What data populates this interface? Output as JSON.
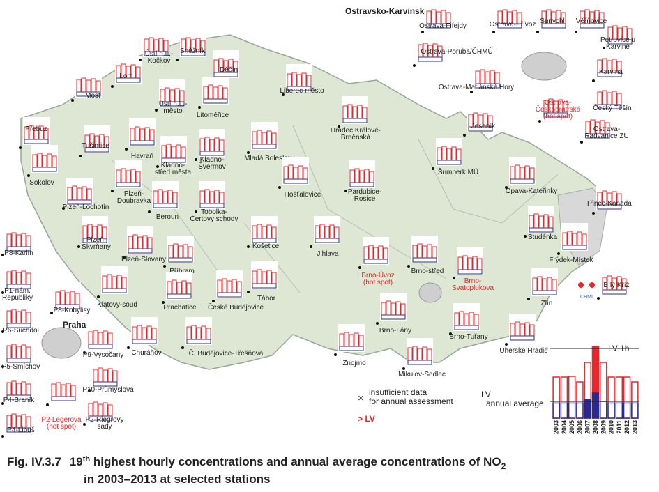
{
  "region_label": "Ostravsko-Karvinsko",
  "city_label": "Praha",
  "stations": [
    {
      "label": [
        "Přebuz"
      ]
    },
    {
      "label": [
        "Tušimice"
      ]
    },
    {
      "label": [
        "Sokolov"
      ]
    },
    {
      "label": [
        "Most"
      ]
    },
    {
      "label": [
        "Lom"
      ]
    },
    {
      "label": [
        "Ústí n.L.-",
        "Kočkov"
      ]
    },
    {
      "label": [
        "Sněžník"
      ]
    },
    {
      "label": [
        "Děčín"
      ]
    },
    {
      "label": [
        "Ústí n.L.-",
        "město"
      ]
    },
    {
      "label": [
        "Litoměřice"
      ]
    },
    {
      "label": [
        "Liberec-město"
      ]
    },
    {
      "label": [
        "Havraň"
      ]
    },
    {
      "label": [
        "Kladno-",
        "střed města"
      ]
    },
    {
      "label": [
        "Kladno-",
        "Švermov"
      ]
    },
    {
      "label": [
        "Mladá Boleslav"
      ]
    },
    {
      "label": [
        "Hradec Králové-",
        "Brněnská"
      ]
    },
    {
      "label": [
        "Plzeň-Lochotín"
      ]
    },
    {
      "label": [
        "Plzeň-",
        "Doubravka"
      ]
    },
    {
      "label": [
        "Beroun"
      ]
    },
    {
      "label": [
        "Tobolka-",
        "Čertovy schody"
      ]
    },
    {
      "label": [
        "Hošťalovice"
      ]
    },
    {
      "label": [
        "Pardubice-",
        "Rosice"
      ]
    },
    {
      "label": [
        "Plzeň-",
        "Skvrňany"
      ]
    },
    {
      "label": [
        "Plzeň-Slovany"
      ]
    },
    {
      "label": [
        "Košetice"
      ]
    },
    {
      "label": [
        "Jihlava"
      ]
    },
    {
      "label": [
        "Příbram"
      ]
    },
    {
      "label": [
        "Klatovy-soud"
      ]
    },
    {
      "label": [
        "Prachatice"
      ]
    },
    {
      "label": [
        "České Budějovice"
      ]
    },
    {
      "label": [
        "Tábor"
      ]
    },
    {
      "label": [
        "Churáňov"
      ]
    },
    {
      "label": [
        "Č. Budějovice-Třešňová"
      ]
    },
    {
      "label": [
        "Znojmo"
      ]
    },
    {
      "label": [
        "Mikulov-Sedlec"
      ]
    },
    {
      "label": [
        "Brno-Lány"
      ]
    },
    {
      "label": [
        "Brno-Tuřany"
      ]
    },
    {
      "label": [
        "Brno-Úvoz",
        "(hot spot)"
      ],
      "color": "#e8262b"
    },
    {
      "label": [
        "Brno-střed"
      ]
    },
    {
      "label": [
        "Brno-",
        "Svatoplukova"
      ],
      "color": "#e8262b"
    },
    {
      "label": [
        "Šumperk MÚ"
      ]
    },
    {
      "label": [
        "Jeseník"
      ]
    },
    {
      "label": [
        "Opava-Kateřinky"
      ]
    },
    {
      "label": [
        "Třinec-Kanada"
      ]
    },
    {
      "label": [
        "Studénka"
      ]
    },
    {
      "label": [
        "Frýdek-Místek"
      ]
    },
    {
      "label": [
        "Bílý Kříž"
      ]
    },
    {
      "label": [
        "Zlín"
      ]
    },
    {
      "label": [
        "Uherské Hradiště"
      ]
    },
    {
      "label": [
        "Ostrava-Fifejdy"
      ]
    },
    {
      "label": [
        "Ostrava-Přívoz"
      ]
    },
    {
      "label": [
        "Šunychl"
      ]
    },
    {
      "label": [
        "Věřňovice"
      ]
    },
    {
      "label": [
        "Petrovice u",
        "Karviné"
      ]
    },
    {
      "label": [
        "Ostrava-Poruba/ČHMÚ"
      ]
    },
    {
      "label": [
        "Ostrava-Mariánské Hory"
      ]
    },
    {
      "label": [
        "Karviná"
      ]
    },
    {
      "label": [
        "Český Těšín"
      ]
    },
    {
      "label": [
        "Ostrava-",
        "Českobratrská",
        "(hot spot)"
      ],
      "color": "#e8262b"
    },
    {
      "label": [
        "Ostrava-",
        "Radvanice ZÚ"
      ]
    },
    {
      "label": [
        "P8-Karlín"
      ]
    },
    {
      "label": [
        "P1-nám.",
        "Republiky"
      ]
    },
    {
      "label": [
        "P8-Kobylisy"
      ]
    },
    {
      "label": [
        "P6-Suchdol"
      ]
    },
    {
      "label": [
        "P9-Vysočany"
      ]
    },
    {
      "label": [
        "P5-Smíchov"
      ]
    },
    {
      "label": [
        "P10-Průmyslová"
      ]
    },
    {
      "label": [
        "P4-Braník"
      ]
    },
    {
      "label": [
        "P2-Legerova",
        "(hot spot)"
      ],
      "color": "#e8262b"
    },
    {
      "label": [
        "P2-Riegrovy",
        "sady"
      ]
    },
    {
      "label": [
        "P4-Libuš"
      ]
    }
  ],
  "legend": {
    "marker": "×",
    "insufficient": [
      "insufficient data",
      "for annual assessment"
    ],
    "exceed": "> LV",
    "exceed_color": "#e8262b",
    "lv_1h": "LV 1h",
    "lv_annual": [
      "LV",
      "annual average"
    ],
    "logo": "CHMI"
  },
  "legend_chart": {
    "type": "bar",
    "categories": [
      "2003",
      "2004",
      "2005",
      "2006",
      "2007",
      "2008",
      "2009",
      "2010",
      "2011",
      "2012",
      "2013"
    ],
    "series": [
      {
        "name": "hourly",
        "color": "#e8262b",
        "values": [
          118,
          118,
          120,
          104,
          160,
          206,
          160,
          118,
          118,
          118,
          104
        ]
      },
      {
        "name": "annual",
        "color": "#2a2a8c",
        "values": [
          36,
          36,
          36,
          36,
          45,
          60,
          40,
          36,
          36,
          36,
          36
        ]
      }
    ],
    "ylim": [
      0,
      220
    ],
    "y2lim": [
      0,
      60
    ],
    "lv_1h": 200,
    "lv_annual": 40
  },
  "caption": {
    "number": "Fig. IV.3.7",
    "lead": "19",
    "sup": "th",
    "body": " highest hourly concentrations and annual average concentrations of NO",
    "sub": "2",
    "line2": "in 2003–2013 at selected stations"
  }
}
